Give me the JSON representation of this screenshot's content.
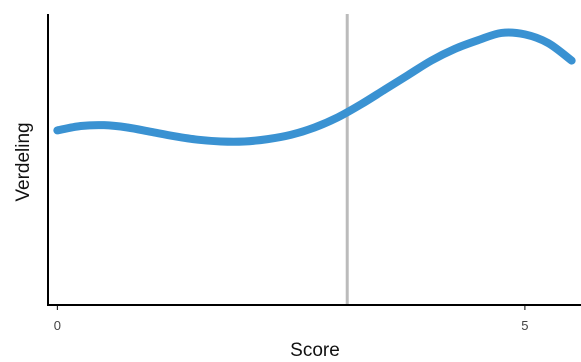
{
  "chart_data": {
    "type": "line",
    "title": "",
    "xlabel": "Score",
    "ylabel": "Verdeling",
    "xlim": [
      -0.1,
      5.6
    ],
    "ylim": [
      0,
      1
    ],
    "xticks": [
      0,
      5
    ],
    "xtick_labels": [
      "0",
      "5"
    ],
    "yticks": [],
    "grid": false,
    "legend": "none",
    "series": [
      {
        "x": [
          0,
          0.25,
          0.5,
          0.75,
          1,
          1.25,
          1.5,
          1.75,
          2,
          2.25,
          2.5,
          2.75,
          3,
          3.25,
          3.5,
          3.75,
          4,
          4.25,
          4.5,
          4.75,
          5,
          5.25,
          5.5
        ],
        "y": [
          0.6,
          0.615,
          0.618,
          0.61,
          0.595,
          0.58,
          0.568,
          0.562,
          0.562,
          0.57,
          0.585,
          0.61,
          0.645,
          0.69,
          0.74,
          0.79,
          0.84,
          0.88,
          0.91,
          0.935,
          0.93,
          0.9,
          0.84
        ],
        "color": "#3a92d2"
      }
    ],
    "reference_line": {
      "x": 3.1,
      "color": "#bbbbbb"
    }
  }
}
